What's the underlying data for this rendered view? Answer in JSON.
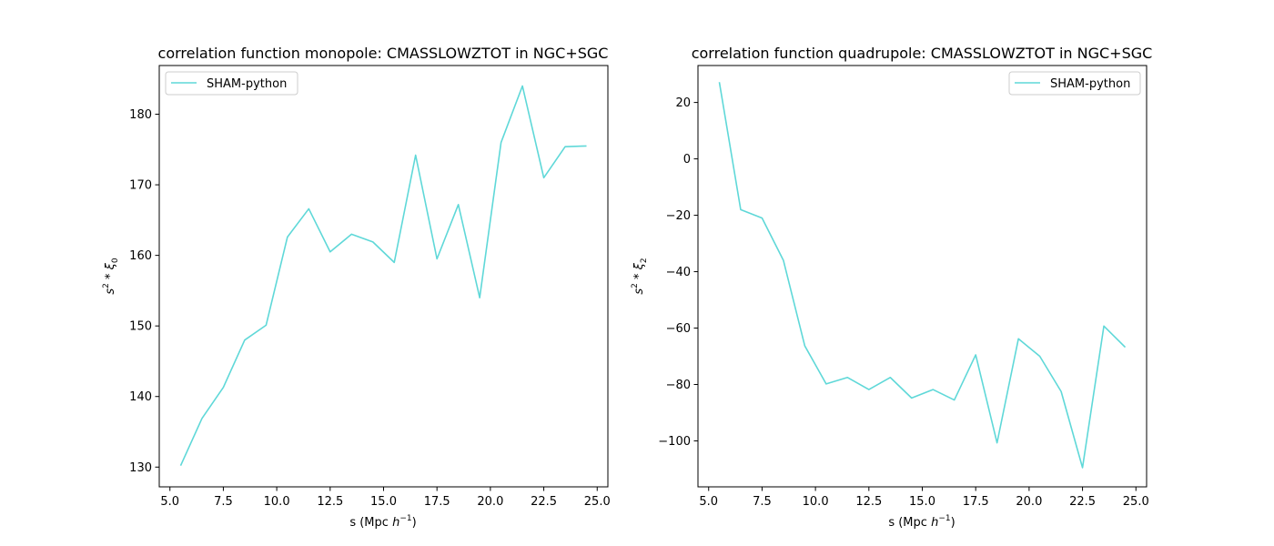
{
  "series_color": "#5fd8d8",
  "chart_data": [
    {
      "type": "line",
      "title": "correlation function monopole: CMASSLOWZTOT in NGC+SGC",
      "xlabel": "s (Mpc h⁻¹)",
      "ylabel": "s² * ξ₀",
      "xlim": [
        4.5,
        25.5
      ],
      "ylim": [
        127.2,
        186.9
      ],
      "xticks": [
        5.0,
        7.5,
        10.0,
        12.5,
        15.0,
        17.5,
        20.0,
        22.5,
        25.0
      ],
      "xtick_labels": [
        "5.0",
        "7.5",
        "10.0",
        "12.5",
        "15.0",
        "17.5",
        "20.0",
        "22.5",
        "25.0"
      ],
      "yticks": [
        130,
        140,
        150,
        160,
        170,
        180
      ],
      "ytick_labels": [
        "130",
        "140",
        "150",
        "160",
        "170",
        "180"
      ],
      "grid": false,
      "legend": "upper-left",
      "series": [
        {
          "name": "SHAM-python",
          "x": [
            5.5,
            6.5,
            7.5,
            8.5,
            9.5,
            10.5,
            11.5,
            12.5,
            13.5,
            14.5,
            15.5,
            16.5,
            17.5,
            18.5,
            19.5,
            20.5,
            21.5,
            22.5,
            23.5,
            24.5
          ],
          "y": [
            130.2,
            136.9,
            141.3,
            148.0,
            150.1,
            162.6,
            166.6,
            160.5,
            163.0,
            161.9,
            159.0,
            174.2,
            159.5,
            167.2,
            154.0,
            176.0,
            184.0,
            171.0,
            175.4,
            175.5
          ]
        }
      ]
    },
    {
      "type": "line",
      "title": "correlation function quadrupole: CMASSLOWZTOT in NGC+SGC",
      "xlabel": "s (Mpc h⁻¹)",
      "ylabel": "s² * ξ₂",
      "xlim": [
        4.5,
        25.5
      ],
      "ylim": [
        -116.3,
        33.1
      ],
      "xticks": [
        5.0,
        7.5,
        10.0,
        12.5,
        15.0,
        17.5,
        20.0,
        22.5,
        25.0
      ],
      "xtick_labels": [
        "5.0",
        "7.5",
        "10.0",
        "12.5",
        "15.0",
        "17.5",
        "20.0",
        "22.5",
        "25.0"
      ],
      "yticks": [
        20,
        0,
        -20,
        -40,
        -60,
        -80,
        -100
      ],
      "ytick_labels": [
        "20",
        "0",
        "−20",
        "−40",
        "−60",
        "−80",
        "−100"
      ],
      "grid": false,
      "legend": "upper-right",
      "series": [
        {
          "name": "SHAM-python",
          "x": [
            5.5,
            6.5,
            7.5,
            8.5,
            9.5,
            10.5,
            11.5,
            12.5,
            13.5,
            14.5,
            15.5,
            16.5,
            17.5,
            18.5,
            19.5,
            20.5,
            21.5,
            22.5,
            23.5,
            24.5
          ],
          "y": [
            27.2,
            -18.0,
            -21.0,
            -36.0,
            -66.3,
            -79.8,
            -77.5,
            -81.8,
            -77.5,
            -84.8,
            -81.8,
            -85.5,
            -69.5,
            -100.7,
            -63.8,
            -70.0,
            -82.5,
            -109.5,
            -59.3,
            -66.8
          ]
        }
      ]
    }
  ]
}
